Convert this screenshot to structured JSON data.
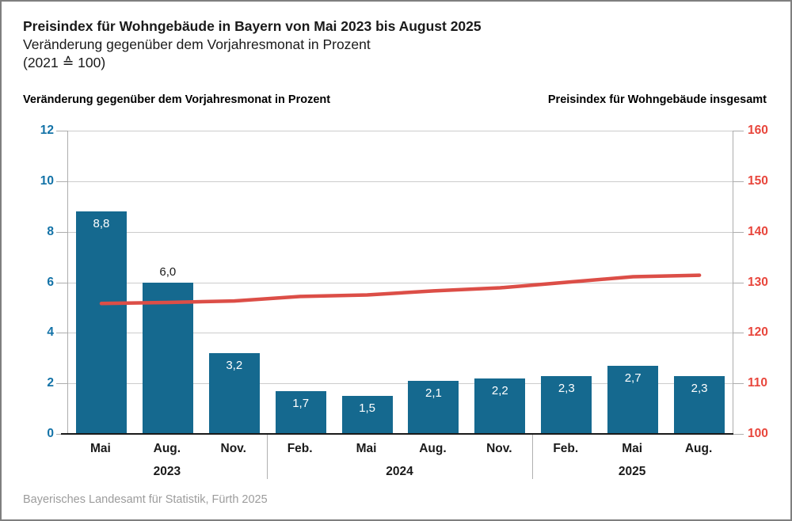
{
  "header": {
    "title": "Preisindex für Wohngebäude in Bayern von Mai 2023 bis August 2025",
    "subtitle": "Veränderung gegenüber dem Vorjahresmonat in Prozent",
    "subtitle2": "(2021 ≙ 100)"
  },
  "axis_headers": {
    "left": "Veränderung gegenüber dem Vorjahresmonat in Prozent",
    "right": "Preisindex für Wohngebäude insgesamt"
  },
  "footer": {
    "source": "Bayerisches Landesamt für Statistik, Fürth 2025"
  },
  "colors": {
    "bar_blue": "#15698F",
    "blue_text": "#1272A7",
    "red_line": "#DC4E47",
    "red_text": "#E8463C",
    "gridline": "#CCCCCC",
    "axis_line": "#ADADAD",
    "baseline": "#1A1A1A",
    "bar_label_inside": "#FFFFFF",
    "bar_label_above": "#1A1A1A",
    "footer_gray": "#9C9C9C"
  },
  "chart_data": {
    "type": "bar",
    "subtype": "combo-bar-line-dual-axis",
    "title": "Preisindex für Wohngebäude in Bayern von Mai 2023 bis August 2025",
    "subtitle": "Veränderung gegenüber dem Vorjahresmonat in Prozent (2021 ≙ 100)",
    "categories": [
      "Mai",
      "Aug.",
      "Nov.",
      "Feb.",
      "Mai",
      "Aug.",
      "Nov.",
      "Feb.",
      "Mai",
      "Aug."
    ],
    "year_groups": [
      {
        "label": "2023",
        "count": 3
      },
      {
        "label": "2024",
        "count": 4
      },
      {
        "label": "2025",
        "count": 3
      }
    ],
    "series": [
      {
        "name": "Veränderung gegenüber dem Vorjahresmonat in Prozent",
        "type": "bar",
        "axis": "left",
        "values": [
          8.8,
          6.0,
          3.2,
          1.7,
          1.5,
          2.1,
          2.2,
          2.3,
          2.7,
          2.3
        ],
        "value_labels": [
          "8,8",
          "6,0",
          "3,2",
          "1,7",
          "1,5",
          "2,1",
          "2,2",
          "2,3",
          "2,7",
          "2,3"
        ],
        "label_placement": [
          "inside",
          "above",
          "inside",
          "inside",
          "inside",
          "inside",
          "inside",
          "inside",
          "inside",
          "inside"
        ]
      },
      {
        "name": "Preisindex für Wohngebäude insgesamt",
        "type": "line",
        "axis": "right",
        "values": [
          125.8,
          126.0,
          126.3,
          127.2,
          127.5,
          128.3,
          128.9,
          130.0,
          131.1,
          131.4
        ]
      }
    ],
    "left_axis": {
      "min": 0,
      "max": 12,
      "step": 2,
      "ticks": [
        "12",
        "10",
        "8",
        "6",
        "4",
        "2",
        "0"
      ]
    },
    "right_axis": {
      "min": 100,
      "max": 160,
      "step": 10,
      "ticks": [
        "160",
        "150",
        "140",
        "130",
        "120",
        "110",
        "100"
      ]
    },
    "grid": true,
    "legend_position": "above-as-axis-headers"
  }
}
